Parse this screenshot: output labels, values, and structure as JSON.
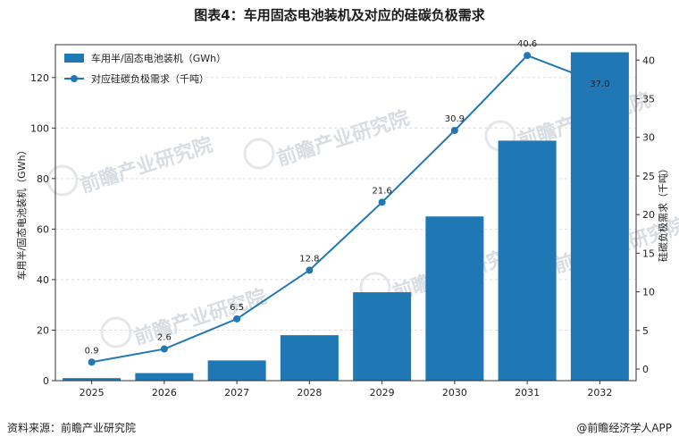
{
  "title": "图表4：车用固态电池装机及对应的硅碳负极需求",
  "watermark": "前瞻产业研究院",
  "footer": {
    "source": "资料来源：前瞻产业研究院",
    "credit": "@前瞻经济学人APP"
  },
  "colors": {
    "bar": "#1f77b4",
    "line": "#1f77b4",
    "grid": "#dddddd"
  },
  "chart_data": {
    "type": "bar",
    "categories": [
      "2025",
      "2026",
      "2027",
      "2028",
      "2029",
      "2030",
      "2031",
      "2032"
    ],
    "series": [
      {
        "name": "车用半/固态电池装机（GWh）",
        "type": "bar",
        "axis": "left",
        "values": [
          1,
          3,
          8,
          18,
          35,
          65,
          95,
          130
        ]
      },
      {
        "name": "对应硅碳负极需求（千吨）",
        "type": "line",
        "axis": "right",
        "values": [
          0.9,
          2.6,
          6.5,
          12.8,
          21.6,
          30.9,
          40.6,
          37.0
        ],
        "data_labels": [
          "0.9",
          "2.6",
          "6.5",
          "12.8",
          "21.6",
          "30.9",
          "40.6",
          "37.0"
        ]
      }
    ],
    "ylabel_left": "车用半/固态电池装机（GWh）",
    "ylabel_right": "硅碳负极需求（千吨）",
    "ylim_left": [
      0,
      133
    ],
    "ylim_right": [
      -1.5,
      42
    ],
    "yticks_left": [
      0,
      20,
      40,
      60,
      80,
      100,
      120
    ],
    "yticks_right": [
      0,
      5,
      10,
      15,
      20,
      25,
      30,
      35,
      40
    ],
    "grid": true,
    "legend_position": "top-left"
  }
}
